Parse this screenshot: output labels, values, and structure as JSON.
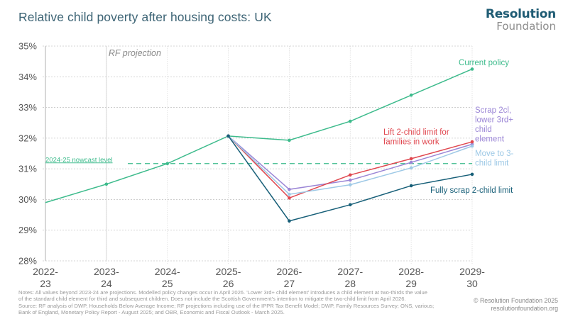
{
  "header": {
    "title": "Relative child poverty after housing costs: UK",
    "logo_line1": "Resolution",
    "logo_line2": "Foundation"
  },
  "chart_data": {
    "type": "line",
    "title": "Relative child poverty after housing costs: UK",
    "xlabel": "",
    "ylabel": "",
    "categories": [
      [
        "2022-",
        "23"
      ],
      [
        "2023-",
        "24"
      ],
      [
        "2024-",
        "25"
      ],
      [
        "2025-",
        "26"
      ],
      [
        "2026-",
        "27"
      ],
      [
        "2027-",
        "28"
      ],
      [
        "2028-",
        "29"
      ],
      [
        "2029-",
        "30"
      ]
    ],
    "ylim": [
      28,
      35
    ],
    "yticks": [
      28,
      29,
      30,
      31,
      32,
      33,
      34,
      35
    ],
    "ytick_format": "%",
    "grid": true,
    "projection_start_index": 1,
    "projection_label": "RF projection",
    "reference_line": {
      "label": "2024-25 nowcast level",
      "value": 31.17,
      "color": "#3dbb8c"
    },
    "series": [
      {
        "name": "Current policy",
        "color": "#3dbb8c",
        "start_index": 0,
        "values": [
          29.9,
          30.5,
          31.17,
          32.07,
          31.93,
          32.55,
          33.4,
          34.25
        ],
        "label_lines": [
          "Current policy"
        ]
      },
      {
        "name": "Scrap 2cl, lower 3rd+ child element",
        "color": "#9b86d6",
        "start_index": 3,
        "values": [
          32.07,
          30.33,
          30.63,
          31.21,
          31.8
        ],
        "label_lines": [
          "Scrap 2cl,",
          "lower 3rd+",
          "child",
          "element"
        ]
      },
      {
        "name": "Lift 2-child limit for families in work",
        "color": "#e0474f",
        "start_index": 3,
        "values": [
          32.07,
          30.05,
          30.8,
          31.33,
          31.88
        ],
        "label_lines": [
          "Lift 2-child limit for",
          "families in work"
        ]
      },
      {
        "name": "Move to 3-child limit",
        "color": "#9ec9e6",
        "start_index": 3,
        "values": [
          32.07,
          30.17,
          30.48,
          31.03,
          31.74
        ],
        "label_lines": [
          "Move to 3-",
          "child limit"
        ]
      },
      {
        "name": "Fully scrap 2-child limit",
        "color": "#175f78",
        "start_index": 3,
        "values": [
          32.07,
          29.3,
          29.83,
          30.45,
          30.82
        ],
        "label_lines": [
          "Fully scrap 2-child limit"
        ]
      }
    ]
  },
  "footer": {
    "notes": [
      "Notes: All values beyond 2023-24 are projections. Modelled policy changes occur in April 2026. 'Lower 3rd+ child element' introduces a child element at two-thirds the value",
      "of the standard child element for third and subsequent children. Does not include the Scottish Government's intention to mitigate the two-child limit from April 2026.",
      "Source: RF analysis of DWP, Households Below Average Income; RF projections including use of the IPPR Tax Benefit Model; DWP, Family Resources Survey; ONS, various;",
      "Bank of England, Monetary Policy Report - August 2025; and OBR, Economic and Fiscal Outlook - March 2025."
    ],
    "copyright": "© Resolution Foundation 2025",
    "website": "resolutionfoundation.org"
  }
}
